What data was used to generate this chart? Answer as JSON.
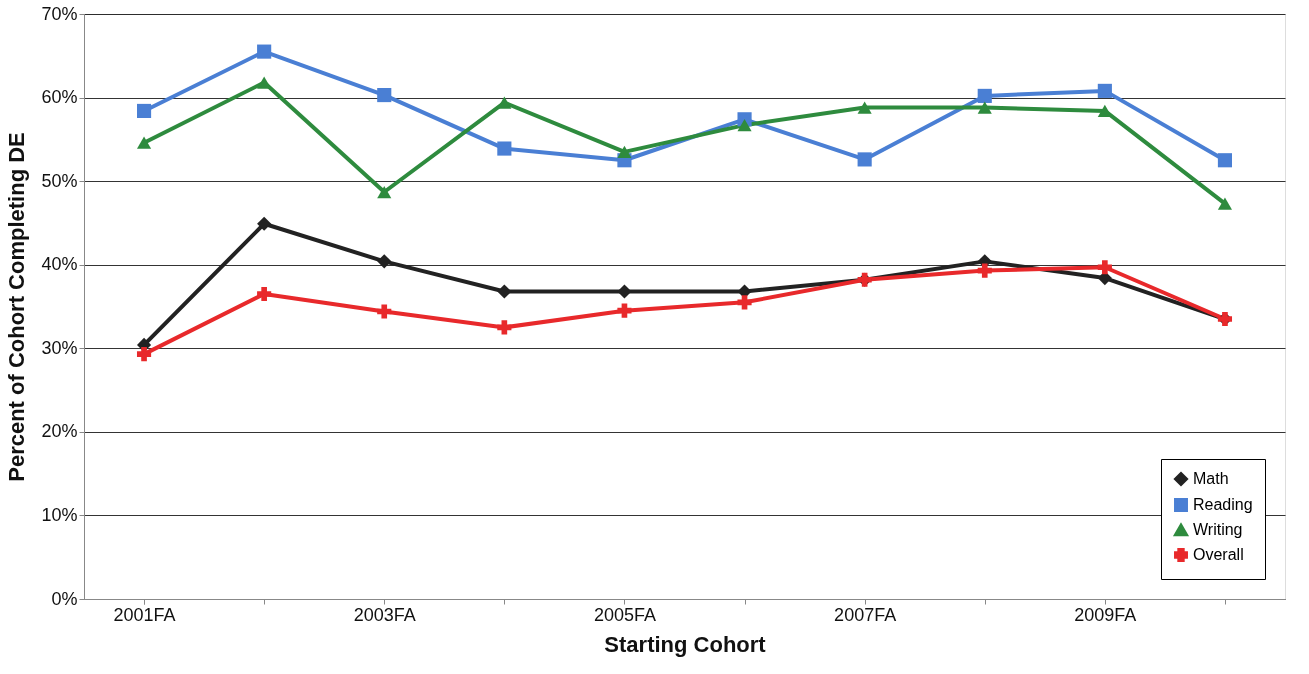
{
  "chart_data": {
    "type": "line",
    "xlabel": "Starting Cohort",
    "ylabel": "Percent of Cohort Completing DE",
    "categories": [
      "2001FA",
      null,
      "2003FA",
      null,
      "2005FA",
      null,
      "2007FA",
      null,
      "2009FA",
      null
    ],
    "series": [
      {
        "name": "Math",
        "color": "#222222",
        "marker": "diamond",
        "values": [
          30.4,
          44.9,
          40.4,
          36.8,
          36.8,
          36.8,
          38.2,
          40.4,
          38.4,
          33.5
        ]
      },
      {
        "name": "Reading",
        "color": "#4a7fd4",
        "marker": "square",
        "values": [
          58.4,
          65.5,
          60.3,
          53.9,
          52.5,
          57.4,
          52.6,
          60.2,
          60.8,
          52.5
        ]
      },
      {
        "name": "Writing",
        "color": "#2e8b3e",
        "marker": "triangle",
        "values": [
          54.6,
          61.8,
          48.7,
          59.4,
          53.5,
          56.7,
          58.8,
          58.8,
          58.4,
          47.3
        ]
      },
      {
        "name": "Overall",
        "color": "#e8292b",
        "marker": "cross",
        "values": [
          29.3,
          36.5,
          34.4,
          32.5,
          34.5,
          35.5,
          38.2,
          39.3,
          39.7,
          33.5
        ]
      }
    ],
    "ylim": [
      0,
      70
    ],
    "yticks": [
      {
        "value": 0,
        "label": "0%"
      },
      {
        "value": 10,
        "label": "10%"
      },
      {
        "value": 20,
        "label": "20%"
      },
      {
        "value": 30,
        "label": "30%"
      },
      {
        "value": 40,
        "label": "40%"
      },
      {
        "value": 50,
        "label": "50%"
      },
      {
        "value": 60,
        "label": "60%"
      },
      {
        "value": 70,
        "label": "70%"
      }
    ],
    "grid": "y",
    "legend": "bottom right",
    "line_style": "solid"
  }
}
